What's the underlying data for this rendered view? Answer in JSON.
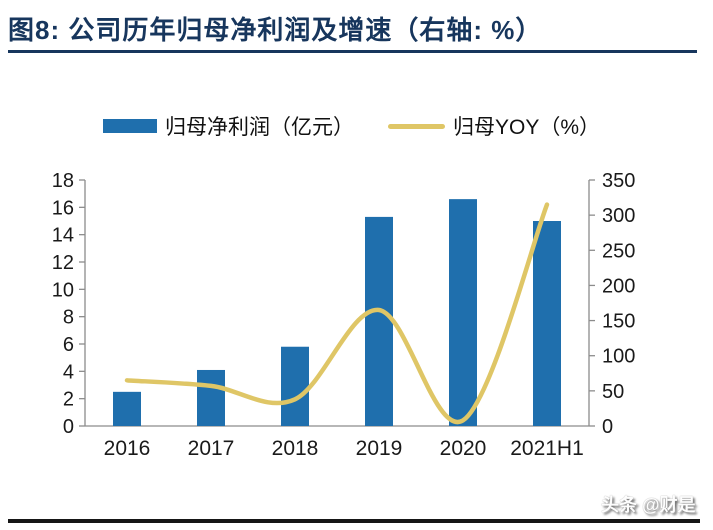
{
  "header": {
    "title": "图8:  公司历年归母净利润及增速（右轴: %）"
  },
  "legend": {
    "bar_label": "归母净利润（亿元）",
    "line_label": "归母YOY（%）"
  },
  "footer": {
    "watermark": "头条 @财是"
  },
  "colors": {
    "title": "#17365D",
    "title_rule": "#17365D",
    "bar": "#1F6FAD",
    "line": "#DFC666",
    "axis": "#8C8C8C",
    "tick_text": "#1A1A1A"
  },
  "chart_data": {
    "type": "bar+line combo",
    "title": "公司历年归母净利润及增速（右轴: %）",
    "categories": [
      "2016",
      "2017",
      "2018",
      "2019",
      "2020",
      "2021H1"
    ],
    "series": [
      {
        "name": "归母净利润（亿元）",
        "type": "bar",
        "axis": "left",
        "values": [
          2.5,
          4.1,
          5.8,
          15.3,
          16.6,
          15.0
        ]
      },
      {
        "name": "归母YOY（%）",
        "type": "line",
        "axis": "right",
        "values": [
          65,
          57,
          38,
          165,
          8,
          315
        ]
      }
    ],
    "left_axis": {
      "min": 0,
      "max": 18,
      "step": 2,
      "ticks": [
        0,
        2,
        4,
        6,
        8,
        10,
        12,
        14,
        16,
        18
      ]
    },
    "right_axis": {
      "min": 0,
      "max": 350,
      "step": 50,
      "ticks": [
        0,
        50,
        100,
        150,
        200,
        250,
        300,
        350
      ]
    },
    "grid": false,
    "legend_position": "top"
  }
}
